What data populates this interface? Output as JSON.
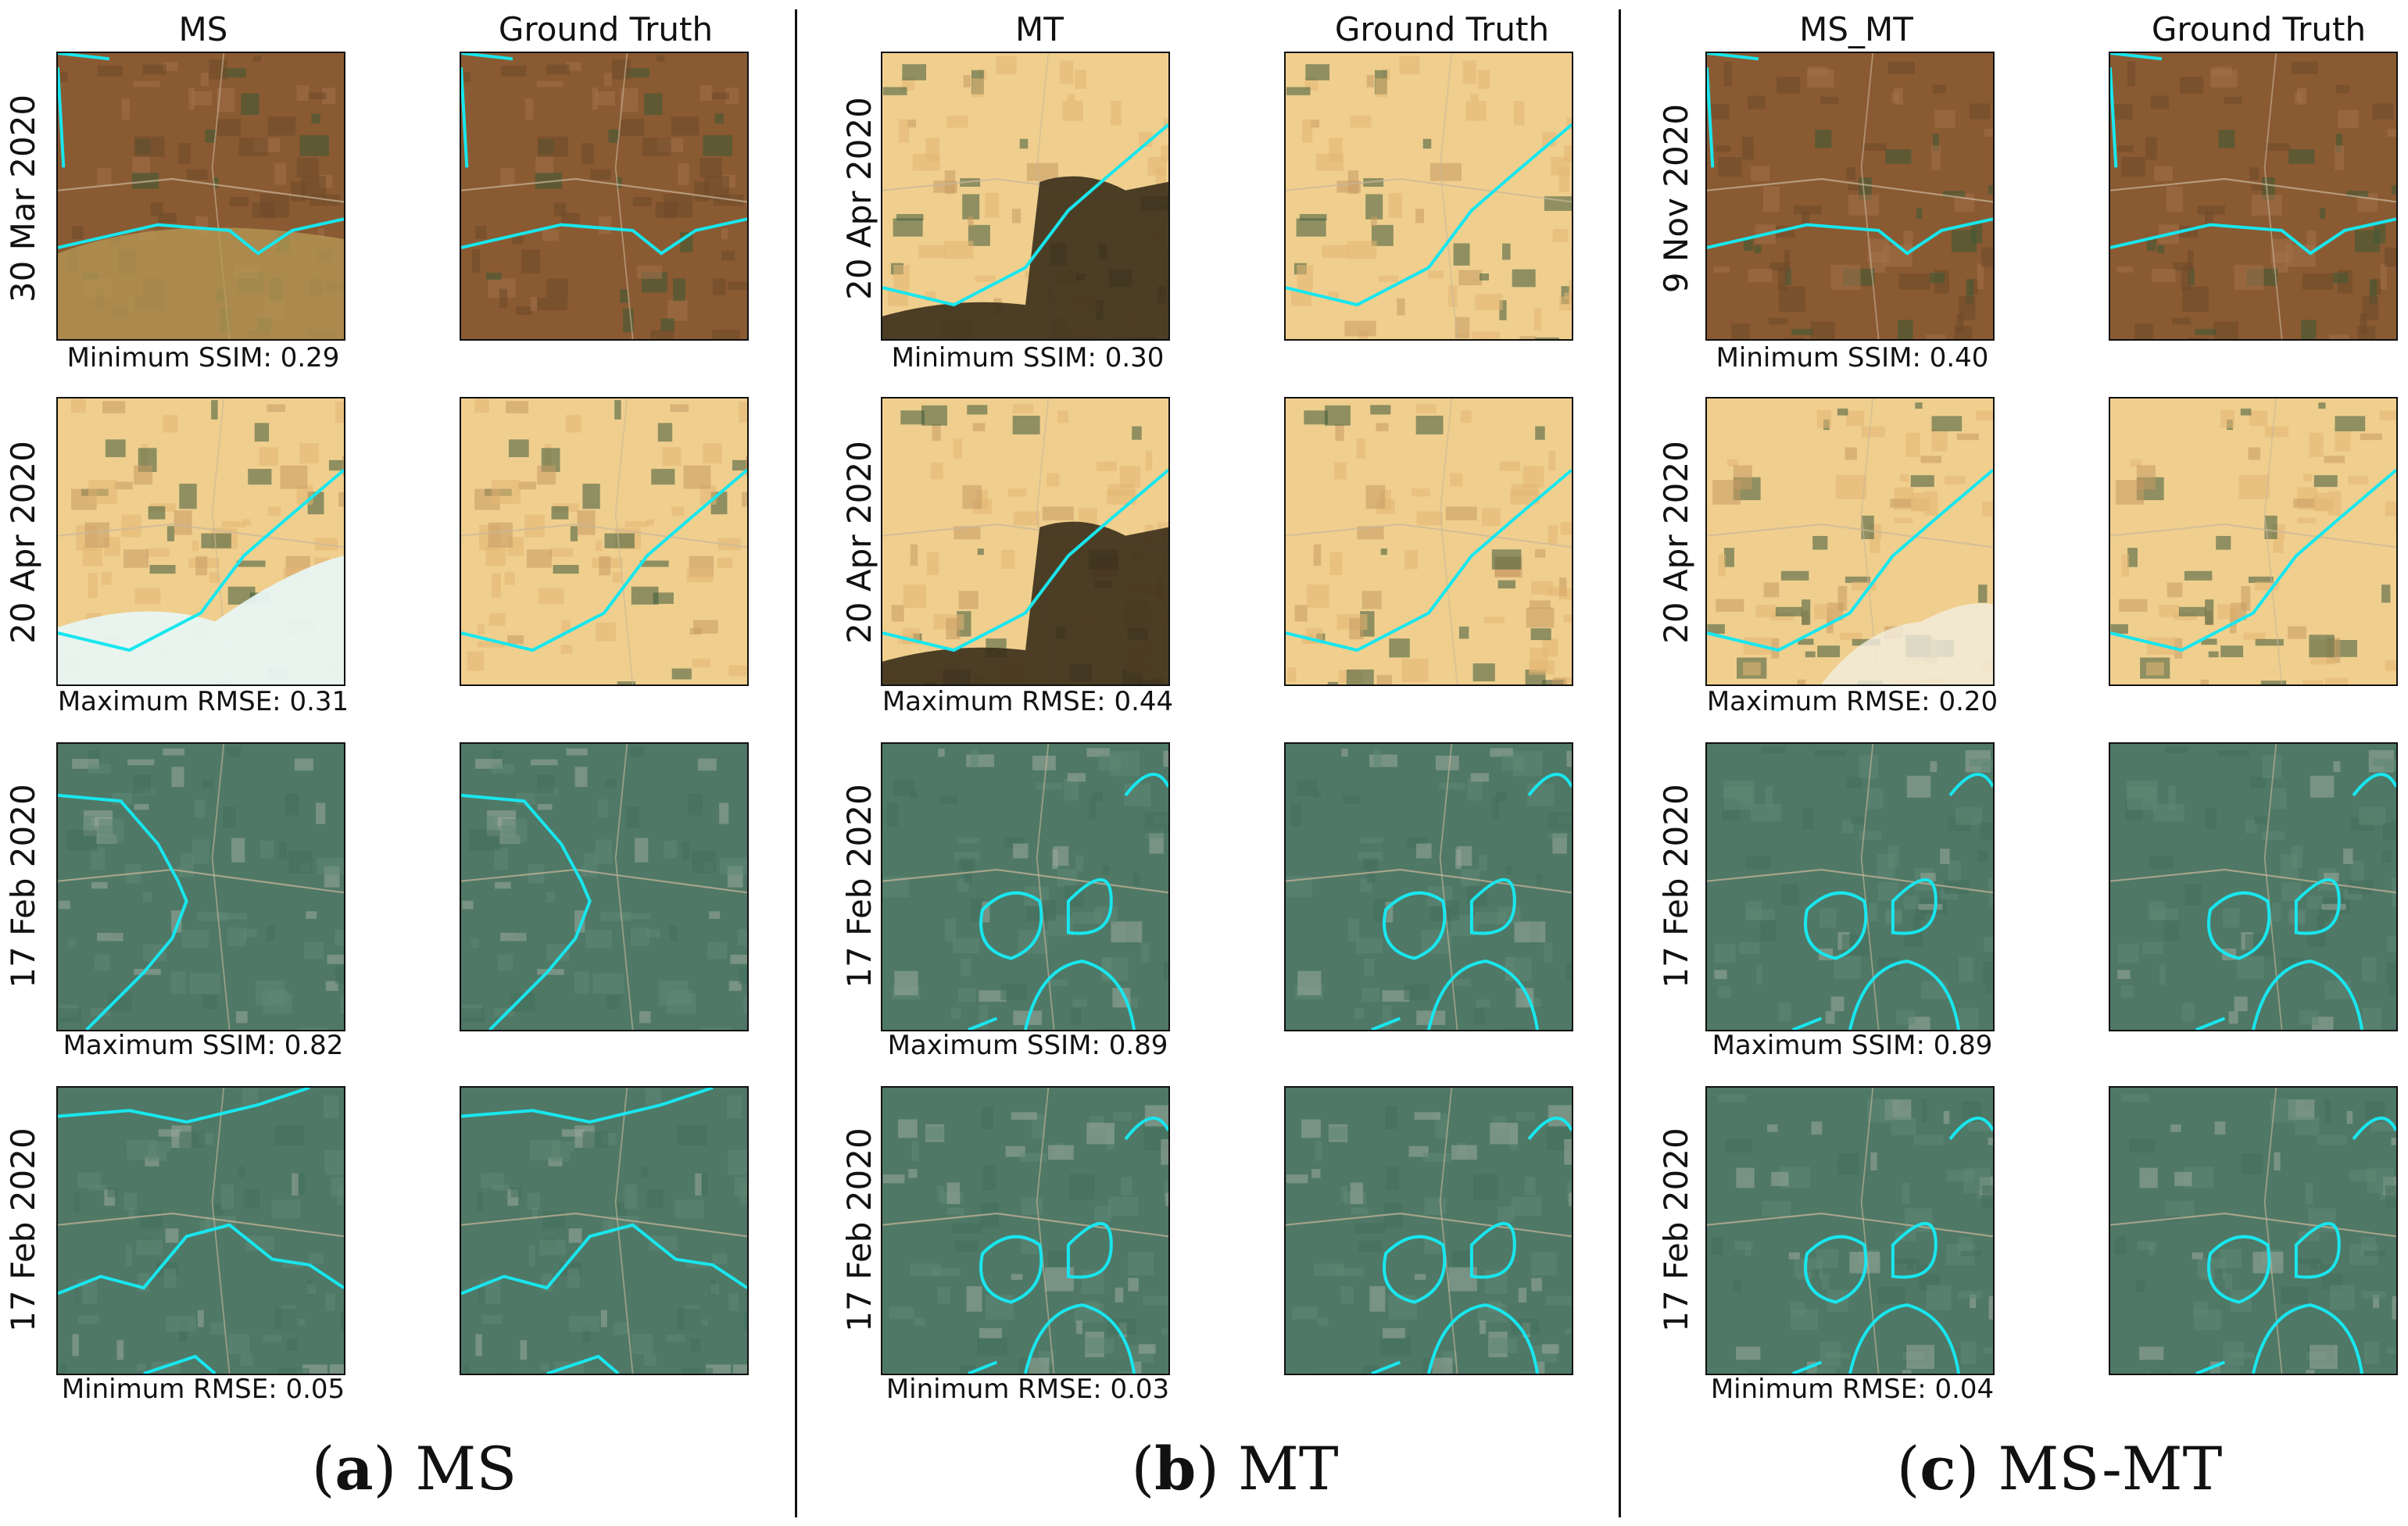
{
  "colors": {
    "cloud_mask": "#19e6ee",
    "dry_land": "#f0cf8e",
    "brown_land": "#8a5a32",
    "green_land": "#4f7866",
    "cloud_white": "#e8f6f3",
    "dark_artifact": "#3a2e1a"
  },
  "groups": [
    {
      "method_title": "MS",
      "truth_title": "Ground Truth",
      "caption_letter": "a",
      "caption_name": "MS",
      "rows": [
        {
          "date": "30 Mar 2020",
          "metric": "Minimum SSIM: 0.29",
          "scene": "brown",
          "artifact": "noisy"
        },
        {
          "date": "20 Apr 2020",
          "metric": "Maximum RMSE: 0.31",
          "scene": "dry",
          "artifact": "white"
        },
        {
          "date": "17 Feb 2020",
          "metric": "Maximum SSIM: 0.82",
          "scene": "green",
          "artifact": "none"
        },
        {
          "date": "17 Feb 2020",
          "metric": "Minimum RMSE: 0.05",
          "scene": "green",
          "artifact": "none"
        }
      ]
    },
    {
      "method_title": "MT",
      "truth_title": "Ground Truth",
      "caption_letter": "b",
      "caption_name": "MT",
      "rows": [
        {
          "date": "20 Apr 2020",
          "metric": "Minimum SSIM: 0.30",
          "scene": "dry",
          "artifact": "dark"
        },
        {
          "date": "20 Apr 2020",
          "metric": "Maximum RMSE: 0.44",
          "scene": "dry",
          "artifact": "dark"
        },
        {
          "date": "17 Feb 2020",
          "metric": "Maximum SSIM: 0.89",
          "scene": "green",
          "artifact": "none"
        },
        {
          "date": "17 Feb 2020",
          "metric": "Minimum RMSE: 0.03",
          "scene": "green",
          "artifact": "none"
        }
      ]
    },
    {
      "method_title": "MS_MT",
      "truth_title": "Ground Truth",
      "caption_letter": "c",
      "caption_name": "MS-MT",
      "rows": [
        {
          "date": "9 Nov 2020",
          "metric": "Minimum SSIM: 0.40",
          "scene": "brown",
          "artifact": "none"
        },
        {
          "date": "20 Apr 2020",
          "metric": "Maximum RMSE: 0.20",
          "scene": "dry",
          "artifact": "light"
        },
        {
          "date": "17 Feb 2020",
          "metric": "Maximum SSIM: 0.89",
          "scene": "green",
          "artifact": "none"
        },
        {
          "date": "17 Feb 2020",
          "metric": "Minimum RMSE: 0.04",
          "scene": "green",
          "artifact": "none"
        }
      ]
    }
  ]
}
